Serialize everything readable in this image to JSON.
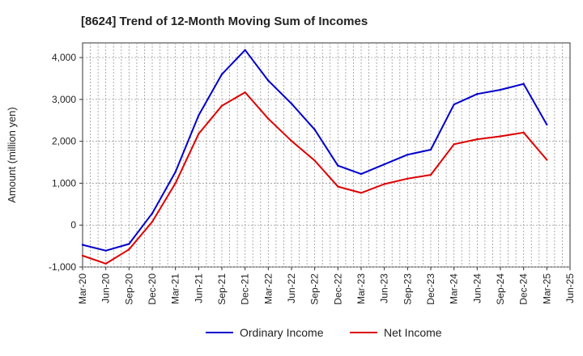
{
  "chart_data": {
    "type": "line",
    "title": "[8624]  Trend of 12-Month Moving Sum of Incomes",
    "xlabel": "",
    "ylabel": "Amount (million yen)",
    "ylim": [
      -1000,
      4350
    ],
    "y_ticks": [
      -1000,
      0,
      1000,
      2000,
      3000,
      4000
    ],
    "y_tick_labels": [
      "-1,000",
      "0",
      "1,000",
      "2,000",
      "3,000",
      "4,000"
    ],
    "grid": true,
    "legend_position": "bottom-center",
    "categories": [
      "Mar-20",
      "Jun-20",
      "Sep-20",
      "Dec-20",
      "Mar-21",
      "Jun-21",
      "Sep-21",
      "Dec-21",
      "Mar-22",
      "Jun-22",
      "Sep-22",
      "Dec-22",
      "Mar-23",
      "Jun-23",
      "Sep-23",
      "Dec-23",
      "Mar-24",
      "Jun-24",
      "Sep-24",
      "Dec-24",
      "Mar-25",
      "Jun-25"
    ],
    "series": [
      {
        "name": "Ordinary Income",
        "color": "#0000cc",
        "values": [
          -470,
          -610,
          -450,
          280,
          1270,
          2620,
          3600,
          4180,
          3450,
          2900,
          2280,
          1420,
          1220,
          1450,
          1680,
          1800,
          2880,
          3130,
          3230,
          3370,
          2400,
          null
        ]
      },
      {
        "name": "Net Income",
        "color": "#dd0000",
        "values": [
          -730,
          -920,
          -580,
          80,
          1000,
          2180,
          2850,
          3170,
          2540,
          2010,
          1540,
          920,
          770,
          980,
          1110,
          1200,
          1930,
          2050,
          2120,
          2210,
          1560,
          null
        ]
      }
    ]
  }
}
